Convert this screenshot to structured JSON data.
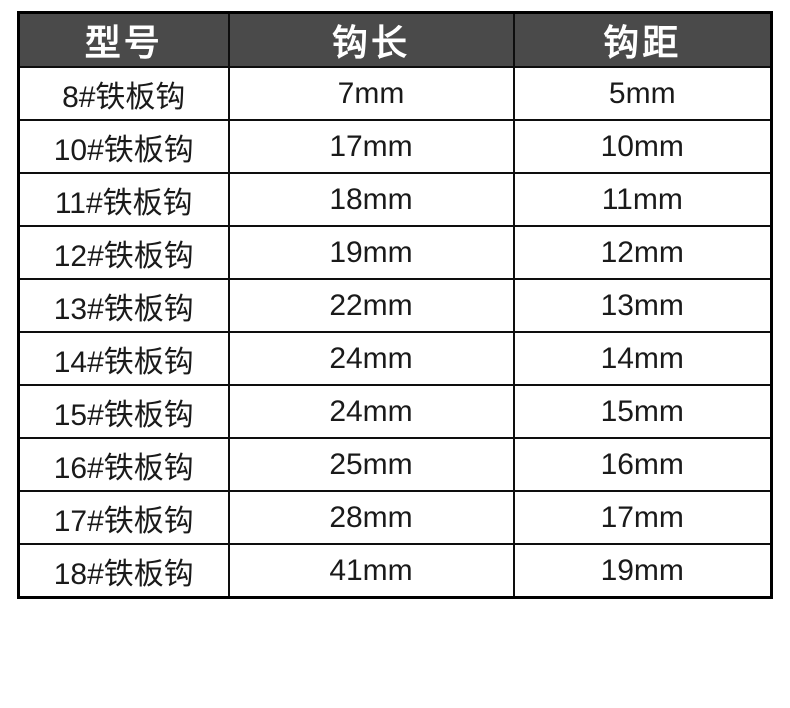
{
  "page": {
    "background_color": "#ffffff"
  },
  "colors": {
    "header_background": "#4a4a4a",
    "header_text": "#ffffff",
    "body_text": "#1a1a1a",
    "border": "#0e0e0e",
    "row_background": "#ffffff"
  },
  "chart_data": {
    "type": "table",
    "title": "",
    "columns": [
      "型号",
      "钩长",
      "钩距"
    ],
    "rows": [
      [
        "8#铁板钩",
        "7mm",
        "5mm"
      ],
      [
        "10#铁板钩",
        "17mm",
        "10mm"
      ],
      [
        "11#铁板钩",
        "18mm",
        "11mm"
      ],
      [
        "12#铁板钩",
        "19mm",
        "12mm"
      ],
      [
        "13#铁板钩",
        "22mm",
        "13mm"
      ],
      [
        "14#铁板钩",
        "24mm",
        "14mm"
      ],
      [
        "15#铁板钩",
        "24mm",
        "15mm"
      ],
      [
        "16#铁板钩",
        "25mm",
        "16mm"
      ],
      [
        "17#铁板钩",
        "28mm",
        "17mm"
      ],
      [
        "18#铁板钩",
        "41mm",
        "19mm"
      ]
    ]
  }
}
